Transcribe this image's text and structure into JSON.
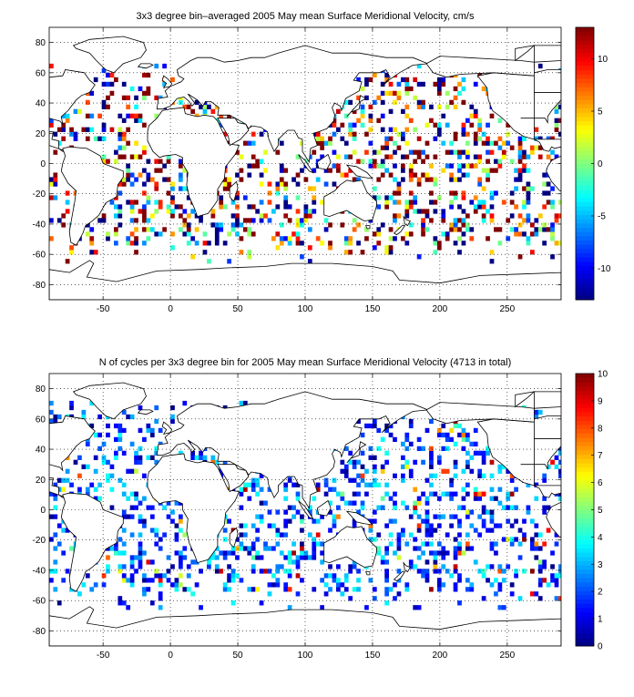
{
  "chart_data": [
    {
      "type": "heatmap",
      "title": "3x3 degree bin–averaged 2005 May mean Surface Meridional Velocity, cm/s",
      "xlim": [
        -90,
        290
      ],
      "ylim": [
        -90,
        90
      ],
      "x_ticks": [
        -50,
        0,
        50,
        100,
        150,
        200,
        250
      ],
      "y_ticks": [
        -80,
        -60,
        -40,
        -20,
        0,
        20,
        40,
        60,
        80
      ],
      "grid": true,
      "colorbar": {
        "range": [
          -13,
          13
        ],
        "ticks": [
          -10,
          -5,
          0,
          5,
          10
        ],
        "colormap": "jet",
        "position": "right"
      },
      "bin_size_deg": 3,
      "units": "cm/s"
    },
    {
      "type": "heatmap",
      "title": "N of cycles per 3x3 degree bin for 2005 May mean Surface Meridional Velocity (4713 in total)",
      "xlim": [
        -90,
        290
      ],
      "ylim": [
        -90,
        90
      ],
      "x_ticks": [
        -50,
        0,
        50,
        100,
        150,
        200,
        250
      ],
      "y_ticks": [
        -80,
        -60,
        -40,
        -20,
        0,
        20,
        40,
        60,
        80
      ],
      "grid": true,
      "colorbar": {
        "range": [
          0,
          10
        ],
        "ticks": [
          0,
          1,
          2,
          3,
          4,
          5,
          6,
          7,
          8,
          9,
          10
        ],
        "colormap": "jet",
        "position": "right"
      },
      "bin_size_deg": 3,
      "total": 4713
    }
  ]
}
